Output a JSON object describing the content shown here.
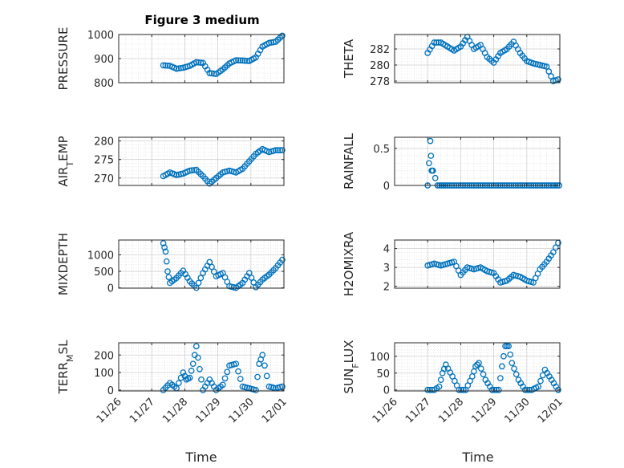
{
  "figure_title": "Figure 3 medium",
  "colors": {
    "marker": "#0072BD",
    "axis": "#262626",
    "grid": "#d9d9d9"
  },
  "x_ticks": [
    "11/26",
    "11/27",
    "11/28",
    "11/29",
    "11/30",
    "12/01"
  ],
  "x_label": "Time",
  "chart_data": [
    {
      "type": "scatter",
      "ylabel": "PRESSURE",
      "ylabel_sub": "",
      "ylabel_tail": "",
      "ylim": [
        800,
        1000
      ],
      "yticks": [
        800,
        900,
        1000
      ],
      "grid": true,
      "series": [
        {
          "x": [
            1.35,
            1.55,
            1.75,
            1.95,
            2.15,
            2.35,
            2.55,
            2.75,
            2.95,
            3.15,
            3.35,
            3.55,
            3.75,
            3.95,
            4.15,
            4.35,
            4.55,
            4.75,
            4.95
          ],
          "y": [
            872,
            870,
            858,
            862,
            870,
            885,
            882,
            840,
            836,
            855,
            880,
            893,
            892,
            890,
            905,
            950,
            965,
            970,
            995
          ]
        }
      ]
    },
    {
      "type": "scatter",
      "ylabel": "THETA",
      "ylabel_sub": "",
      "ylabel_tail": "",
      "ylim": [
        277.8,
        283.8
      ],
      "yticks": [
        278,
        280,
        282
      ],
      "grid": true,
      "series": [
        {
          "x": [
            1.0,
            1.2,
            1.4,
            1.6,
            1.8,
            2.0,
            2.2,
            2.4,
            2.6,
            2.8,
            3.0,
            3.2,
            3.4,
            3.6,
            3.8,
            4.0,
            4.2,
            4.4,
            4.6,
            4.8,
            4.95
          ],
          "y": [
            281.5,
            282.8,
            282.8,
            282.3,
            281.8,
            282.3,
            283.5,
            282.0,
            282.5,
            281.0,
            280.3,
            281.5,
            282.0,
            282.9,
            281.5,
            280.5,
            280.2,
            280.0,
            279.8,
            278.0,
            278.2
          ]
        }
      ]
    },
    {
      "type": "scatter",
      "ylabel": "AIR",
      "ylabel_sub": "T",
      "ylabel_tail": "EMP",
      "ylim": [
        268,
        281
      ],
      "yticks": [
        270,
        275,
        280
      ],
      "grid": true,
      "series": [
        {
          "x": [
            1.35,
            1.55,
            1.75,
            1.95,
            2.15,
            2.35,
            2.55,
            2.75,
            2.95,
            3.15,
            3.35,
            3.55,
            3.75,
            3.95,
            4.15,
            4.35,
            4.55,
            4.75,
            4.95
          ],
          "y": [
            270.5,
            271.5,
            270.8,
            271.2,
            272.0,
            272.2,
            270.5,
            268.5,
            270.0,
            271.5,
            272.0,
            271.5,
            272.5,
            274.5,
            276.5,
            277.8,
            277.0,
            277.5,
            277.5
          ]
        }
      ]
    },
    {
      "type": "scatter",
      "ylabel": "RAINFALL",
      "ylabel_sub": "",
      "ylabel_tail": "",
      "ylim": [
        0,
        0.65
      ],
      "yticks": [
        0,
        0.5
      ],
      "grid": true,
      "series": [
        {
          "x": [
            1.0,
            1.08,
            1.12,
            1.16,
            1.3,
            1.6,
            2.0,
            2.4,
            2.8,
            3.2,
            3.6,
            4.0,
            4.4,
            4.8,
            4.98
          ],
          "y": [
            0,
            0.6,
            0.2,
            0.2,
            0,
            0,
            0,
            0,
            0,
            0,
            0,
            0,
            0,
            0,
            0
          ]
        }
      ]
    },
    {
      "type": "scatter",
      "ylabel": "MIXDEPTH",
      "ylabel_sub": "",
      "ylabel_tail": "",
      "ylim": [
        -10,
        1450
      ],
      "yticks": [
        0,
        500,
        1000
      ],
      "grid": true,
      "series": [
        {
          "x": [
            1.35,
            1.42,
            1.48,
            1.55,
            1.75,
            1.95,
            2.15,
            2.35,
            2.55,
            2.75,
            2.95,
            3.15,
            3.35,
            3.55,
            3.75,
            3.95,
            4.15,
            4.35,
            4.55,
            4.75,
            4.95
          ],
          "y": [
            1350,
            1100,
            500,
            150,
            300,
            520,
            200,
            0,
            450,
            780,
            350,
            450,
            50,
            0,
            150,
            450,
            20,
            250,
            400,
            600,
            850
          ]
        }
      ]
    },
    {
      "type": "scatter",
      "ylabel": "H2OMIXRA",
      "ylabel_sub": "",
      "ylabel_tail": "",
      "ylim": [
        1.9,
        4.45
      ],
      "yticks": [
        2,
        3,
        4
      ],
      "grid": true,
      "series": [
        {
          "x": [
            1.0,
            1.2,
            1.4,
            1.6,
            1.8,
            2.0,
            2.2,
            2.4,
            2.6,
            2.8,
            3.0,
            3.2,
            3.4,
            3.6,
            3.8,
            4.0,
            4.2,
            4.4,
            4.6,
            4.8,
            4.95
          ],
          "y": [
            3.1,
            3.2,
            3.1,
            3.2,
            3.3,
            2.6,
            3.0,
            2.9,
            3.0,
            2.8,
            2.7,
            2.2,
            2.3,
            2.6,
            2.5,
            2.3,
            2.2,
            2.9,
            3.3,
            3.8,
            4.3
          ]
        }
      ]
    },
    {
      "type": "scatter",
      "ylabel": "TERR",
      "ylabel_sub": "M",
      "ylabel_tail": "SL",
      "ylim": [
        -5,
        270
      ],
      "yticks": [
        0,
        100,
        200
      ],
      "grid": true,
      "series": [
        {
          "x": [
            1.35,
            1.55,
            1.75,
            1.95,
            2.05,
            2.15,
            2.25,
            2.35,
            2.45,
            2.55,
            2.75,
            2.95,
            3.15,
            3.35,
            3.55,
            3.75,
            3.95,
            4.15,
            4.25,
            4.35,
            4.55,
            4.75,
            4.95
          ],
          "y": [
            0,
            40,
            10,
            100,
            60,
            70,
            150,
            250,
            120,
            0,
            60,
            0,
            30,
            140,
            150,
            20,
            10,
            0,
            150,
            200,
            20,
            10,
            20
          ]
        }
      ]
    },
    {
      "type": "scatter",
      "ylabel": "SUN",
      "ylabel_sub": "F",
      "ylabel_tail": "LUX",
      "ylim": [
        -3,
        140
      ],
      "yticks": [
        0,
        50,
        100
      ],
      "grid": true,
      "series": [
        {
          "x": [
            1.0,
            1.2,
            1.35,
            1.45,
            1.55,
            1.75,
            1.95,
            2.15,
            2.35,
            2.45,
            2.55,
            2.75,
            2.95,
            3.15,
            3.25,
            3.35,
            3.45,
            3.55,
            3.75,
            3.95,
            4.15,
            4.35,
            4.55,
            4.75,
            4.95
          ],
          "y": [
            0,
            0,
            10,
            50,
            75,
            40,
            0,
            0,
            40,
            70,
            80,
            30,
            0,
            0,
            70,
            130,
            130,
            80,
            30,
            0,
            0,
            10,
            60,
            30,
            0
          ]
        }
      ]
    }
  ]
}
